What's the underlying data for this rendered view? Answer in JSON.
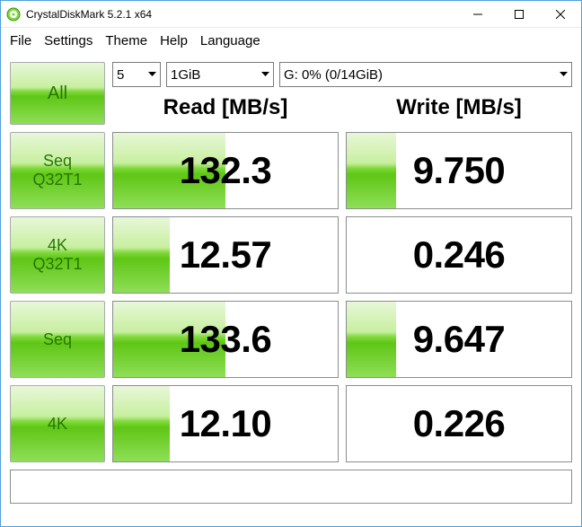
{
  "window": {
    "title": "CrystalDiskMark 5.2.1 x64"
  },
  "menu": {
    "items": [
      "File",
      "Settings",
      "Theme",
      "Help",
      "Language"
    ]
  },
  "controls": {
    "all_label": "All",
    "runs": "5",
    "size": "1GiB",
    "drive": "G: 0% (0/14GiB)"
  },
  "headers": {
    "read": "Read [MB/s]",
    "write": "Write [MB/s]"
  },
  "rows": [
    {
      "label_line1": "Seq",
      "label_line2": "Q32T1",
      "read": "132.3",
      "read_pct": 50,
      "write": "9.750",
      "write_pct": 22
    },
    {
      "label_line1": "4K",
      "label_line2": "Q32T1",
      "read": "12.57",
      "read_pct": 25,
      "write": "0.246",
      "write_pct": 0
    },
    {
      "label_line1": "Seq",
      "label_line2": "",
      "read": "133.6",
      "read_pct": 50,
      "write": "9.647",
      "write_pct": 22
    },
    {
      "label_line1": "4K",
      "label_line2": "",
      "read": "12.10",
      "read_pct": 25,
      "write": "0.226",
      "write_pct": 0
    }
  ],
  "colors": {
    "window_border": "#4ea0db",
    "button_text": "#267700",
    "cell_border": "#8a8d8f",
    "bar_gradient": [
      "#e8f7d9",
      "#c7ef9f",
      "#7fd93a",
      "#5fc615",
      "#8fde58"
    ],
    "background": "#ffffff",
    "text": "#000000"
  },
  "typography": {
    "title_fontsize": 12,
    "menu_fontsize": 15,
    "header_fontsize": 24,
    "value_fontsize": 42,
    "button_fontsize": 18,
    "all_button_fontsize": 20
  }
}
